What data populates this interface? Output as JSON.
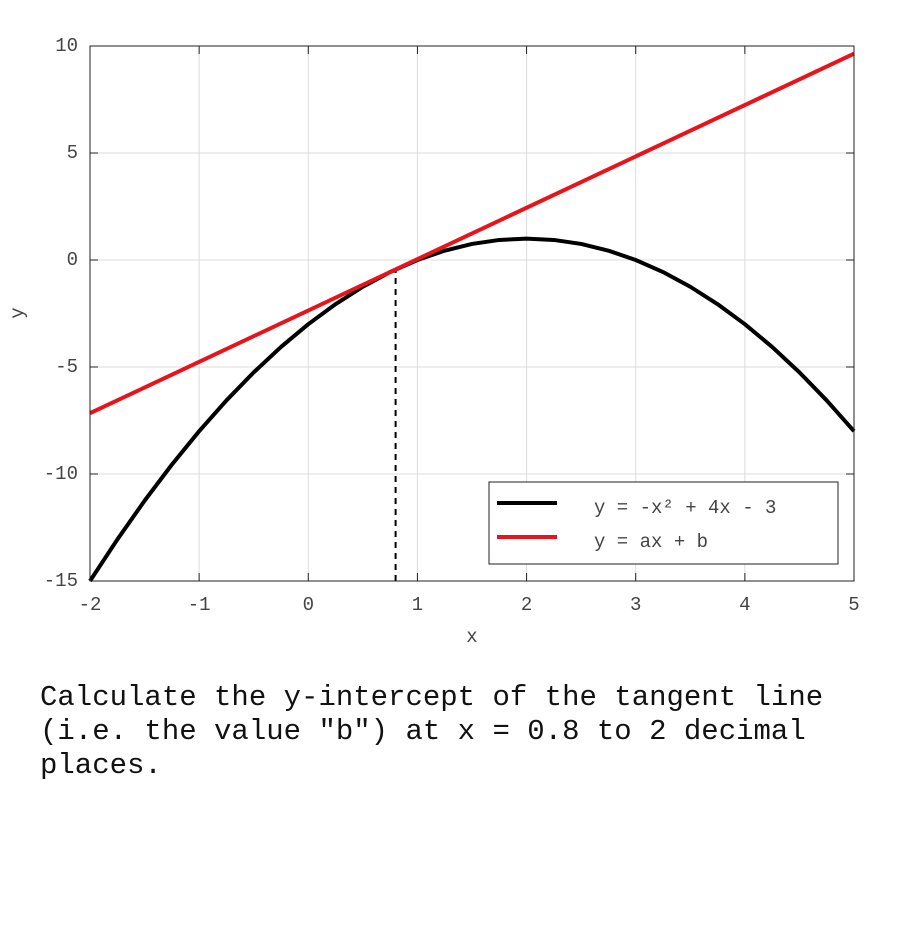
{
  "chart_data": {
    "type": "line",
    "xlabel": "x",
    "ylabel": "y",
    "xlim": [
      -2,
      5
    ],
    "xticks": [
      -2,
      -1,
      0,
      1,
      2,
      3,
      4,
      5
    ],
    "ylim": [
      -15,
      10
    ],
    "yticks": [
      -15,
      -10,
      -5,
      0,
      5,
      10
    ],
    "grid": true,
    "legend": "lower right",
    "series": [
      {
        "name": "y = -x² + 4x - 3",
        "color": "#000000",
        "x": [
          -2,
          -1.75,
          -1.5,
          -1.25,
          -1,
          -0.75,
          -0.5,
          -0.25,
          0,
          0.25,
          0.5,
          0.75,
          1,
          1.25,
          1.5,
          1.75,
          2,
          2.25,
          2.5,
          2.75,
          3,
          3.25,
          3.5,
          3.75,
          4,
          4.25,
          4.5,
          4.75,
          5
        ],
        "values": [
          -15,
          -13.0625,
          -11.25,
          -9.5625,
          -8,
          -6.5625,
          -5.25,
          -4.0625,
          -3,
          -2.0625,
          -1.25,
          -0.5625,
          0,
          0.4375,
          0.75,
          0.9375,
          1,
          0.9375,
          0.75,
          0.4375,
          0,
          -0.5625,
          -1.25,
          -2.0625,
          -3,
          -4.0625,
          -5.25,
          -6.5625,
          -8
        ]
      },
      {
        "name": "y = ax + b",
        "color": "#e8141c",
        "x": [
          -2,
          5
        ],
        "values": [
          -7.16,
          9.64
        ]
      }
    ],
    "guide": {
      "x": 0.8,
      "y": -0.44
    }
  },
  "question": "Calculate the y-intercept of the tangent line (i.e. the value \"b\") at x = 0.8 to 2 decimal places."
}
